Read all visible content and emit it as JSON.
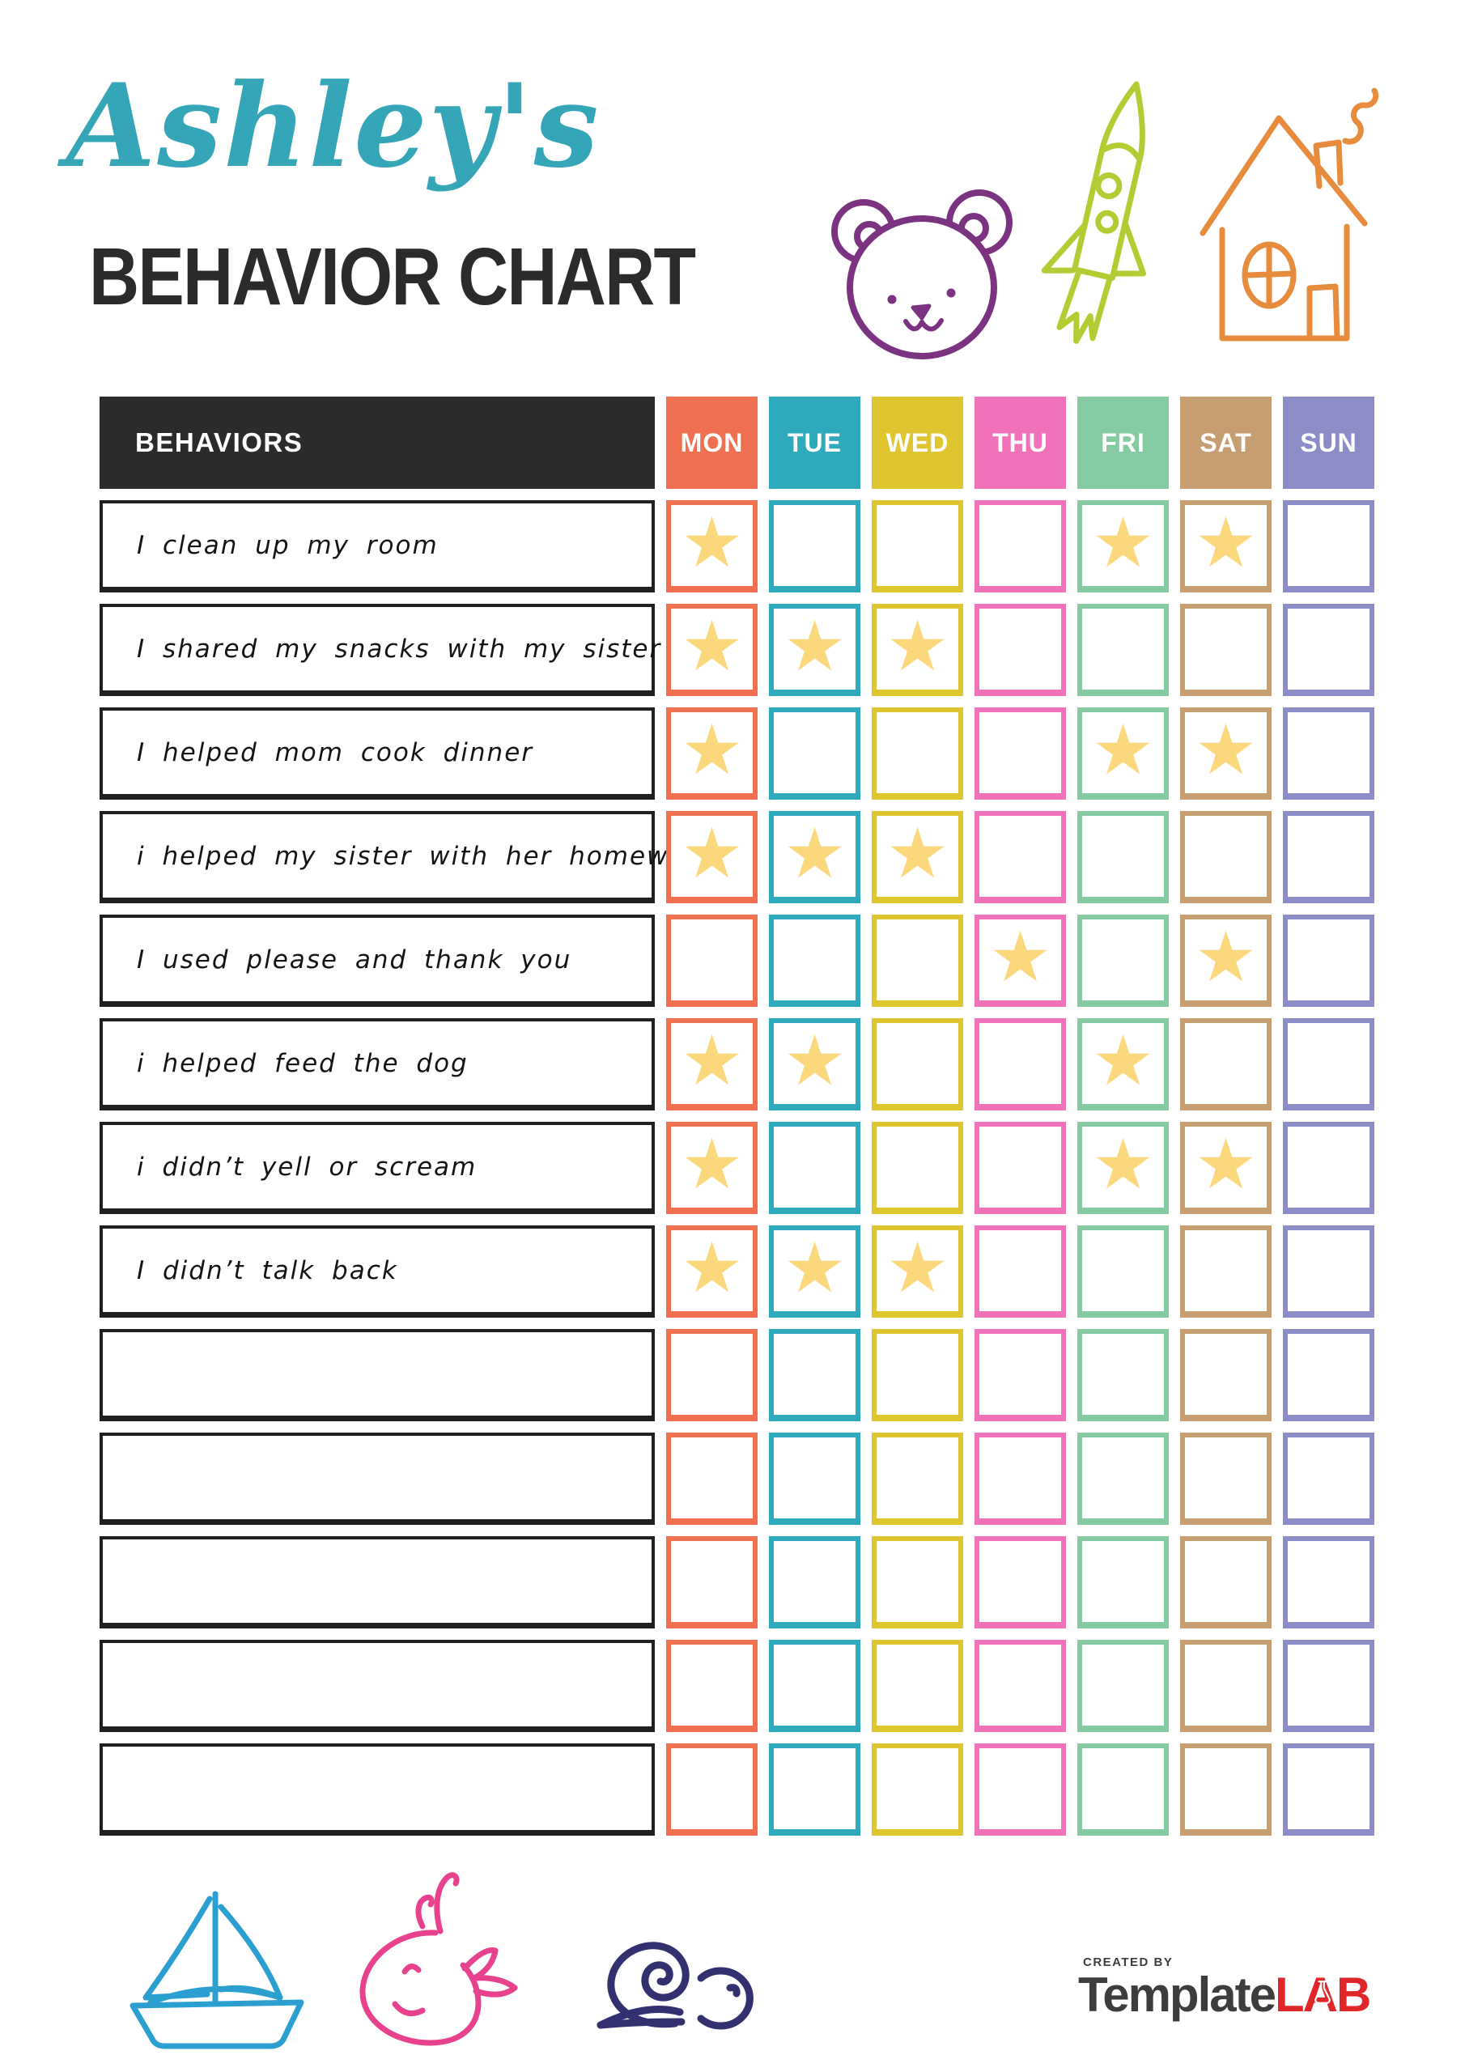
{
  "page": {
    "title_script": "Ashley's",
    "title_main": "BEHAVIOR CHART"
  },
  "table": {
    "behaviors_header": "BEHAVIORS",
    "star_glyph": "★",
    "days": [
      {
        "label": "MON",
        "color": "#ee7051"
      },
      {
        "label": "TUE",
        "color": "#2fa9bc"
      },
      {
        "label": "WED",
        "color": "#dfc52f"
      },
      {
        "label": "THU",
        "color": "#f172b9"
      },
      {
        "label": "FRI",
        "color": "#84cba1"
      },
      {
        "label": "SAT",
        "color": "#c79e71"
      },
      {
        "label": "SUN",
        "color": "#8c8cc6"
      }
    ],
    "rows": [
      {
        "label": "I clean up my room",
        "stars": [
          1,
          0,
          0,
          0,
          1,
          1,
          0
        ]
      },
      {
        "label": "I shared my snacks with my sister",
        "stars": [
          1,
          1,
          1,
          0,
          0,
          0,
          0
        ]
      },
      {
        "label": "I helped mom cook dinner",
        "stars": [
          1,
          0,
          0,
          0,
          1,
          1,
          0
        ]
      },
      {
        "label": "i helped my sister with her homework",
        "stars": [
          1,
          1,
          1,
          0,
          0,
          0,
          0
        ]
      },
      {
        "label": "I used please and thank you",
        "stars": [
          0,
          0,
          0,
          1,
          0,
          1,
          0
        ]
      },
      {
        "label": "i helped feed the dog",
        "stars": [
          1,
          1,
          0,
          0,
          1,
          0,
          0
        ]
      },
      {
        "label": "i didn’t yell or scream",
        "stars": [
          1,
          0,
          0,
          0,
          1,
          1,
          0
        ]
      },
      {
        "label": "I didn’t talk back",
        "stars": [
          1,
          1,
          1,
          0,
          0,
          0,
          0
        ]
      },
      {
        "label": "",
        "stars": [
          0,
          0,
          0,
          0,
          0,
          0,
          0
        ]
      },
      {
        "label": "",
        "stars": [
          0,
          0,
          0,
          0,
          0,
          0,
          0
        ]
      },
      {
        "label": "",
        "stars": [
          0,
          0,
          0,
          0,
          0,
          0,
          0
        ]
      },
      {
        "label": "",
        "stars": [
          0,
          0,
          0,
          0,
          0,
          0,
          0
        ]
      },
      {
        "label": "",
        "stars": [
          0,
          0,
          0,
          0,
          0,
          0,
          0
        ]
      }
    ]
  },
  "decorations": {
    "top": [
      "bear-icon",
      "rocket-icon",
      "house-icon"
    ],
    "bottom": [
      "sailboat-icon",
      "whale-icon",
      "snail-icon"
    ]
  },
  "logo": {
    "created_by": "CREATED BY",
    "name_primary": "Template",
    "name_accent": "LAB"
  },
  "colors": {
    "title_script": "#35a6b8",
    "title_main": "#2b2b2b",
    "header_bg": "#2b2b2b",
    "label_border": "#1f1f1f",
    "star": "#fbd87c",
    "logo_dark": "#3d3d3d",
    "logo_red": "#e02629",
    "doodle_bear": "#7b3381",
    "doodle_rocket": "#b3cc33",
    "doodle_house": "#e78b3d",
    "doodle_boat": "#2a9fd0",
    "doodle_whale": "#e8428f",
    "doodle_snail": "#32306e"
  }
}
